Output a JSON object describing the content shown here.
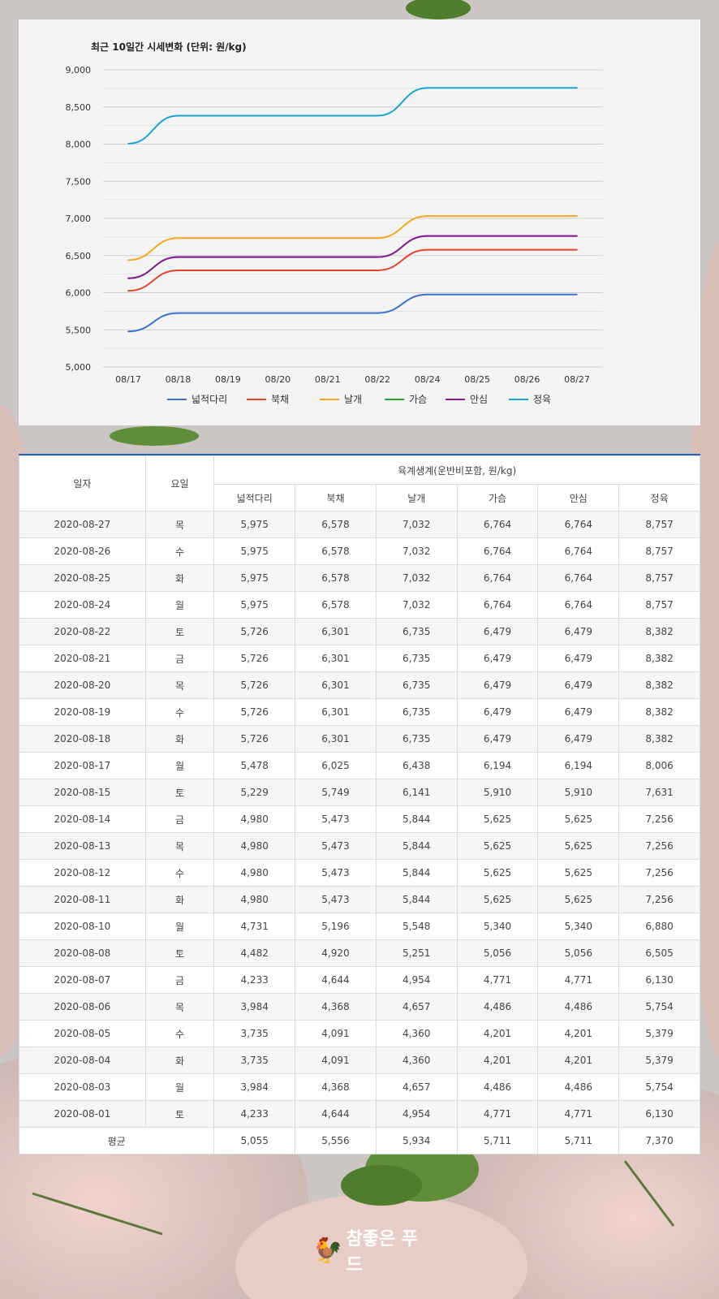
{
  "chart_data": {
    "type": "line",
    "title": "최근 10일간 시세변화 (단위: 원/kg)",
    "categories": [
      "08/17",
      "08/18",
      "08/19",
      "08/20",
      "08/21",
      "08/22",
      "08/24",
      "08/25",
      "08/26",
      "08/27"
    ],
    "ylim": [
      5000,
      9000
    ],
    "yticks": [
      5000,
      5500,
      6000,
      6500,
      7000,
      7500,
      8000,
      8500,
      9000
    ],
    "ytick_labels": [
      "5,000",
      "5,500",
      "6,000",
      "6,500",
      "7,000",
      "7,500",
      "8,000",
      "8,500",
      "9,000"
    ],
    "grid": true,
    "legend_position": "bottom",
    "series": [
      {
        "name": "넓적다리",
        "color": "#3b6fd0",
        "values": [
          5478,
          5726,
          5726,
          5726,
          5726,
          5726,
          5975,
          5975,
          5975,
          5975
        ]
      },
      {
        "name": "북채",
        "color": "#e0452a",
        "values": [
          6025,
          6301,
          6301,
          6301,
          6301,
          6301,
          6578,
          6578,
          6578,
          6578
        ]
      },
      {
        "name": "날개",
        "color": "#f5a623",
        "values": [
          6438,
          6735,
          6735,
          6735,
          6735,
          6735,
          7032,
          7032,
          7032,
          7032
        ]
      },
      {
        "name": "가슴",
        "color": "#2ea12e",
        "values": [
          6194,
          6479,
          6479,
          6479,
          6479,
          6479,
          6764,
          6764,
          6764,
          6764
        ]
      },
      {
        "name": "안심",
        "color": "#8b1a9b",
        "values": [
          6194,
          6479,
          6479,
          6479,
          6479,
          6479,
          6764,
          6764,
          6764,
          6764
        ]
      },
      {
        "name": "정육",
        "color": "#1aa3cf",
        "values": [
          8006,
          8382,
          8382,
          8382,
          8382,
          8382,
          8757,
          8757,
          8757,
          8757
        ]
      }
    ]
  },
  "table": {
    "header_date": "일자",
    "header_day": "요일",
    "header_group": "육계생계(운반비포함, 원/kg)",
    "columns": [
      "넓적다리",
      "북채",
      "날개",
      "가슴",
      "안심",
      "정육"
    ],
    "rows": [
      [
        "2020-08-27",
        "목",
        "5,975",
        "6,578",
        "7,032",
        "6,764",
        "6,764",
        "8,757"
      ],
      [
        "2020-08-26",
        "수",
        "5,975",
        "6,578",
        "7,032",
        "6,764",
        "6,764",
        "8,757"
      ],
      [
        "2020-08-25",
        "화",
        "5,975",
        "6,578",
        "7,032",
        "6,764",
        "6,764",
        "8,757"
      ],
      [
        "2020-08-24",
        "월",
        "5,975",
        "6,578",
        "7,032",
        "6,764",
        "6,764",
        "8,757"
      ],
      [
        "2020-08-22",
        "토",
        "5,726",
        "6,301",
        "6,735",
        "6,479",
        "6,479",
        "8,382"
      ],
      [
        "2020-08-21",
        "금",
        "5,726",
        "6,301",
        "6,735",
        "6,479",
        "6,479",
        "8,382"
      ],
      [
        "2020-08-20",
        "목",
        "5,726",
        "6,301",
        "6,735",
        "6,479",
        "6,479",
        "8,382"
      ],
      [
        "2020-08-19",
        "수",
        "5,726",
        "6,301",
        "6,735",
        "6,479",
        "6,479",
        "8,382"
      ],
      [
        "2020-08-18",
        "화",
        "5,726",
        "6,301",
        "6,735",
        "6,479",
        "6,479",
        "8,382"
      ],
      [
        "2020-08-17",
        "월",
        "5,478",
        "6,025",
        "6,438",
        "6,194",
        "6,194",
        "8,006"
      ],
      [
        "2020-08-15",
        "토",
        "5,229",
        "5,749",
        "6,141",
        "5,910",
        "5,910",
        "7,631"
      ],
      [
        "2020-08-14",
        "금",
        "4,980",
        "5,473",
        "5,844",
        "5,625",
        "5,625",
        "7,256"
      ],
      [
        "2020-08-13",
        "목",
        "4,980",
        "5,473",
        "5,844",
        "5,625",
        "5,625",
        "7,256"
      ],
      [
        "2020-08-12",
        "수",
        "4,980",
        "5,473",
        "5,844",
        "5,625",
        "5,625",
        "7,256"
      ],
      [
        "2020-08-11",
        "화",
        "4,980",
        "5,473",
        "5,844",
        "5,625",
        "5,625",
        "7,256"
      ],
      [
        "2020-08-10",
        "월",
        "4,731",
        "5,196",
        "5,548",
        "5,340",
        "5,340",
        "6,880"
      ],
      [
        "2020-08-08",
        "토",
        "4,482",
        "4,920",
        "5,251",
        "5,056",
        "5,056",
        "6,505"
      ],
      [
        "2020-08-07",
        "금",
        "4,233",
        "4,644",
        "4,954",
        "4,771",
        "4,771",
        "6,130"
      ],
      [
        "2020-08-06",
        "목",
        "3,984",
        "4,368",
        "4,657",
        "4,486",
        "4,486",
        "5,754"
      ],
      [
        "2020-08-05",
        "수",
        "3,735",
        "4,091",
        "4,360",
        "4,201",
        "4,201",
        "5,379"
      ],
      [
        "2020-08-04",
        "화",
        "3,735",
        "4,091",
        "4,360",
        "4,201",
        "4,201",
        "5,379"
      ],
      [
        "2020-08-03",
        "월",
        "3,984",
        "4,368",
        "4,657",
        "4,486",
        "4,486",
        "5,754"
      ],
      [
        "2020-08-01",
        "토",
        "4,233",
        "4,644",
        "4,954",
        "4,771",
        "4,771",
        "6,130"
      ]
    ],
    "avg_label": "평균",
    "avg_values": [
      "5,055",
      "5,556",
      "5,934",
      "5,711",
      "5,711",
      "7,370"
    ]
  },
  "logo_text": "참좋은 푸드"
}
